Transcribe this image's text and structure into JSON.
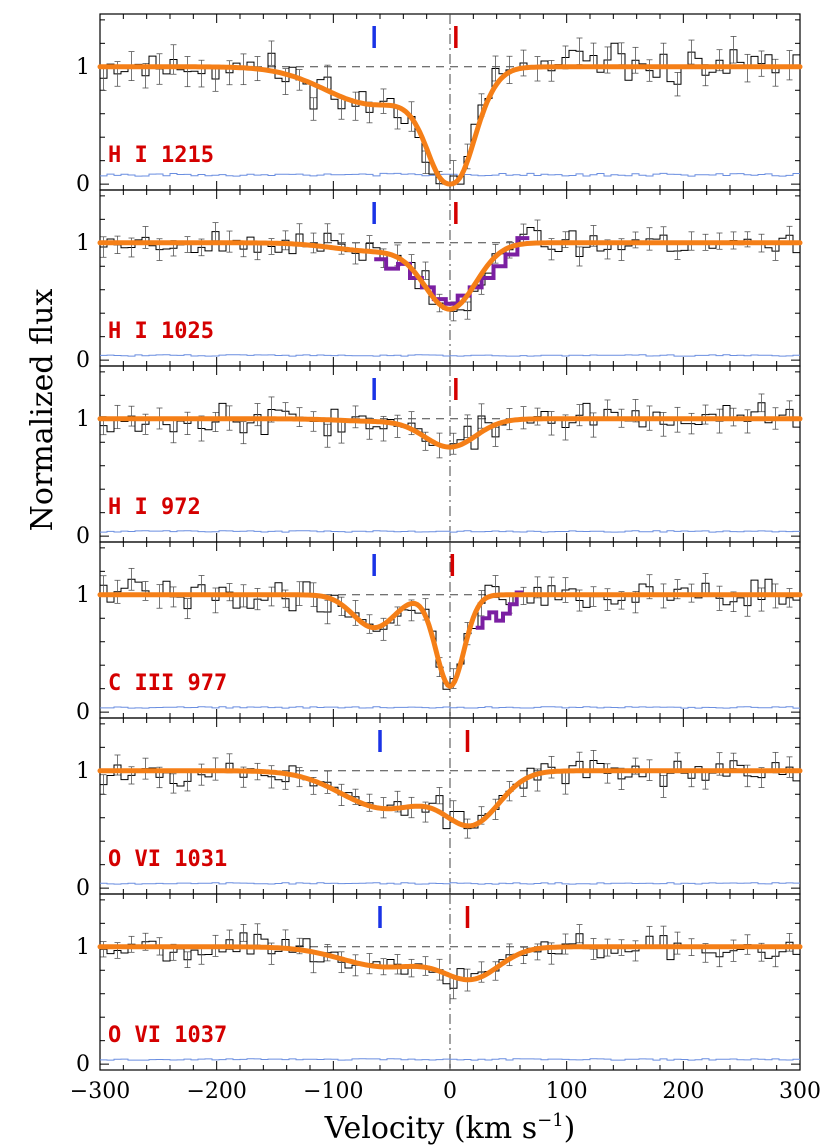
{
  "chart_data": {
    "type": "line",
    "title": "",
    "xlabel": "Velocity (km s",
    "xlabel_sup": "−1",
    "xlabel_close": ")",
    "ylabel": "Normalized flux",
    "xlim": [
      -300,
      300
    ],
    "ylim": [
      -0.05,
      1.45
    ],
    "x_ticks": [
      -300,
      -200,
      -100,
      0,
      100,
      200,
      300
    ],
    "x_tick_labels": [
      "−300",
      "−200",
      "−100",
      "0",
      "100",
      "200",
      "300"
    ],
    "y_ticks": [
      0,
      1
    ],
    "y_tick_labels": [
      "0",
      "1"
    ],
    "colors": {
      "fit": "#f57f17",
      "data": "#000000",
      "error": "#6a8ee0",
      "blend": "#7b1fa2",
      "marker_blue": "#1a33e6",
      "marker_red": "#d40000",
      "label": "#d40000"
    },
    "panels": [
      {
        "label": "H I 1215",
        "markers": [
          -65,
          5
        ],
        "components": [
          {
            "center": -65,
            "depth": 0.32,
            "width": 42
          },
          {
            "center": 0,
            "depth": 1.0,
            "width": 20
          },
          {
            "center": 0,
            "depth": 0.45,
            "width": 10
          }
        ],
        "blend": null,
        "error_level": 0.08,
        "noise": 0.11,
        "seed": 11
      },
      {
        "label": "H I 1025",
        "markers": [
          -65,
          5
        ],
        "components": [
          {
            "center": -65,
            "depth": 0.07,
            "width": 35
          },
          {
            "center": 0,
            "depth": 0.56,
            "width": 22
          }
        ],
        "blend": {
          "from": -65,
          "to": 68,
          "values": [
            0.86,
            0.78,
            0.82,
            0.7,
            0.62,
            0.52,
            0.48,
            0.55,
            0.62,
            0.7,
            0.8,
            0.9,
            1.04
          ]
        },
        "error_level": 0.04,
        "noise": 0.08,
        "seed": 23
      },
      {
        "label": "H I 972",
        "markers": [
          -65,
          5
        ],
        "components": [
          {
            "center": -65,
            "depth": 0.02,
            "width": 30
          },
          {
            "center": 0,
            "depth": 0.24,
            "width": 22
          }
        ],
        "blend": null,
        "error_level": 0.04,
        "noise": 0.09,
        "seed": 37
      },
      {
        "label": "C III 977",
        "markers": [
          -65,
          2
        ],
        "components": [
          {
            "center": -65,
            "depth": 0.28,
            "width": 18
          },
          {
            "center": 0,
            "depth": 0.78,
            "width": 12
          }
        ],
        "blend": {
          "from": 22,
          "to": 63,
          "values": [
            0.72,
            0.8,
            0.85,
            0.78,
            0.84,
            0.92,
            1.02
          ]
        },
        "error_level": 0.04,
        "noise": 0.09,
        "seed": 41
      },
      {
        "label": "O VI 1031",
        "markers": [
          -60,
          15
        ],
        "components": [
          {
            "center": -55,
            "depth": 0.32,
            "width": 38
          },
          {
            "center": 18,
            "depth": 0.44,
            "width": 24
          }
        ],
        "blend": null,
        "error_level": 0.04,
        "noise": 0.08,
        "seed": 53
      },
      {
        "label": "O VI 1037",
        "markers": [
          -60,
          15
        ],
        "components": [
          {
            "center": -55,
            "depth": 0.17,
            "width": 38
          },
          {
            "center": 18,
            "depth": 0.26,
            "width": 24
          }
        ],
        "blend": null,
        "error_level": 0.04,
        "noise": 0.08,
        "seed": 67
      }
    ]
  }
}
